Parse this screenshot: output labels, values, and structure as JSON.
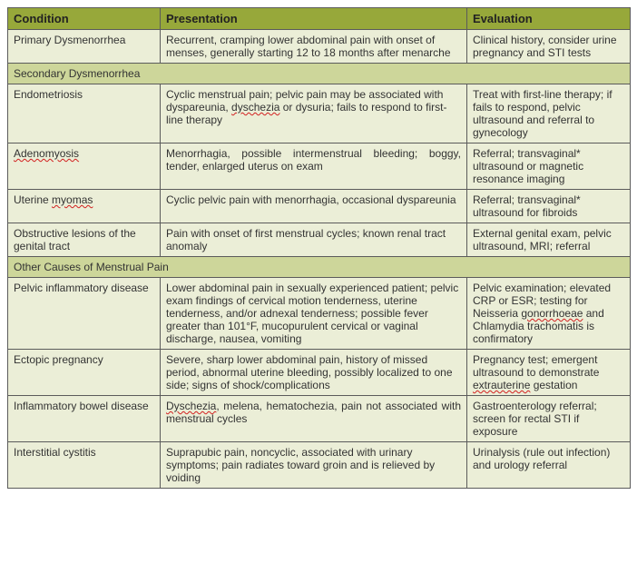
{
  "headers": {
    "condition": "Condition",
    "presentation": "Presentation",
    "evaluation": "Evaluation"
  },
  "colors": {
    "header_bg": "#97a83a",
    "section_bg": "#cdd69a",
    "cell_bg": "#ebeed7",
    "border": "#5b5b5b",
    "squiggle": "#d21f1f",
    "text": "#333333"
  },
  "rows": [
    {
      "type": "data",
      "condition": "Primary Dysmenorrhea",
      "presentation": [
        {
          "t": "Recurrent, cramping lower abdominal pain with onset of menses, generally starting 12 to 18 months after menarche"
        }
      ],
      "evaluation": [
        {
          "t": "Clinical history, consider urine pregnancy and STI tests"
        }
      ]
    },
    {
      "type": "section",
      "label": "Secondary Dysmenorrhea"
    },
    {
      "type": "data",
      "condition": "Endometriosis",
      "presentation": [
        {
          "t": "Cyclic menstrual pain; pelvic pain may be associated with dyspareunia, "
        },
        {
          "t": "dyschezia",
          "s": true
        },
        {
          "t": " or dysuria; fails to respond to first-line therapy"
        }
      ],
      "evaluation": [
        {
          "t": "Treat with first-line therapy; if fails to respond, pelvic ultrasound and referral to gynecology"
        }
      ]
    },
    {
      "type": "data",
      "condition_parts": [
        {
          "t": "Adenomyosis",
          "s": true
        }
      ],
      "presentation": [
        {
          "t": "Menorrhagia, possible intermenstrual bleeding; boggy, tender, enlarged uterus on exam"
        }
      ],
      "presentation_justify": true,
      "evaluation": [
        {
          "t": "Referral; transvaginal* ultrasound or magnetic resonance imaging"
        }
      ]
    },
    {
      "type": "data",
      "condition_parts": [
        {
          "t": "Uterine "
        },
        {
          "t": "myomas",
          "s": true
        }
      ],
      "presentation": [
        {
          "t": "Cyclic pelvic pain with menorrhagia, occasional dyspareunia"
        }
      ],
      "evaluation": [
        {
          "t": "Referral; transvaginal* ultrasound for fibroids"
        }
      ]
    },
    {
      "type": "data",
      "condition": "Obstructive lesions of the genital tract",
      "presentation": [
        {
          "t": "Pain with onset of first menstrual cycles; known renal tract anomaly"
        }
      ],
      "evaluation": [
        {
          "t": "External genital exam, pelvic ultrasound, MRI; referral"
        }
      ]
    },
    {
      "type": "section",
      "label": "Other Causes of Menstrual Pain"
    },
    {
      "type": "data",
      "condition": "Pelvic inflammatory disease",
      "presentation": [
        {
          "t": "Lower abdominal pain in sexually experienced patient; pelvic exam findings of cervical motion tenderness, uterine tenderness, and/or adnexal tenderness; possible fever greater than 101°F, mucopurulent cervical or vaginal discharge, nausea, vomiting"
        }
      ],
      "evaluation": [
        {
          "t": "Pelvic examination; elevated CRP or ESR; testing for Neisseria "
        },
        {
          "t": "gonorrhoeae",
          "s": true
        },
        {
          "t": " and Chlamydia trachomatis is confirmatory"
        }
      ]
    },
    {
      "type": "data",
      "condition": "Ectopic pregnancy",
      "presentation": [
        {
          "t": "Severe, sharp lower abdominal pain, history of missed period, abnormal uterine bleeding, possibly localized to one side; signs of shock/complications"
        }
      ],
      "evaluation": [
        {
          "t": "Pregnancy test; emergent ultrasound to demonstrate "
        },
        {
          "t": "extrauterine",
          "s": true
        },
        {
          "t": " gestation"
        }
      ]
    },
    {
      "type": "data",
      "condition": "Inflammatory bowel disease",
      "presentation": [
        {
          "t": "Dyschezia",
          "s": true
        },
        {
          "t": ", melena, hematochezia, pain not associated with menstrual cycles"
        }
      ],
      "presentation_justify": true,
      "evaluation": [
        {
          "t": "Gastroenterology referral; screen for rectal STI if exposure"
        }
      ]
    },
    {
      "type": "data",
      "condition": "Interstitial cystitis",
      "presentation": [
        {
          "t": "Suprapubic pain, noncyclic, associated with urinary symptoms; pain radiates toward groin and is relieved by voiding"
        }
      ],
      "evaluation": [
        {
          "t": "Urinalysis (rule out infection) and urology referral"
        }
      ]
    }
  ]
}
